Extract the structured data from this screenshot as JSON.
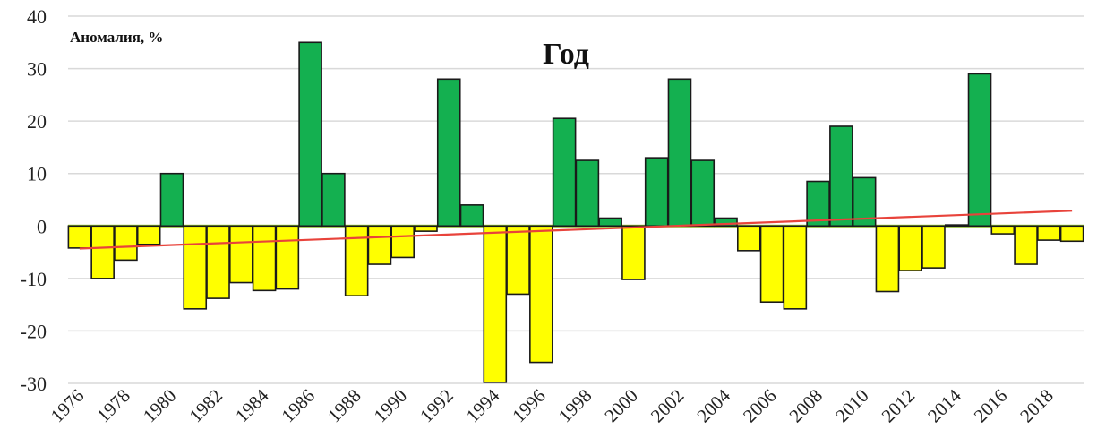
{
  "chart_data": {
    "type": "bar",
    "title": "Год",
    "ylabel": "Аномалия, %",
    "xlabel": "",
    "ylim": [
      -30,
      40
    ],
    "y_ticks": [
      40,
      30,
      20,
      10,
      0,
      -10,
      -20,
      -30
    ],
    "x_tick_labels": [
      "1976",
      "1978",
      "1980",
      "1982",
      "1984",
      "1986",
      "1988",
      "1990",
      "1992",
      "1994",
      "1996",
      "1998",
      "2000",
      "2002",
      "2004",
      "2006",
      "2008",
      "2010",
      "2012",
      "2014",
      "2016",
      "2018"
    ],
    "categories": [
      "1976",
      "1977",
      "1978",
      "1979",
      "1980",
      "1981",
      "1982",
      "1983",
      "1984",
      "1985",
      "1986",
      "1987",
      "1988",
      "1989",
      "1990",
      "1991",
      "1992",
      "1993",
      "1994",
      "1995",
      "1996",
      "1997",
      "1998",
      "1999",
      "2000",
      "2001",
      "2002",
      "2003",
      "2004",
      "2005",
      "2006",
      "2007",
      "2008",
      "2009",
      "2010",
      "2011",
      "2012",
      "2013",
      "2014",
      "2015",
      "2016",
      "2017",
      "2018",
      "2019"
    ],
    "values": [
      -4.2,
      -10,
      -6.5,
      -3.5,
      10,
      -15.8,
      -13.8,
      -10.8,
      -12.3,
      -12,
      35,
      10,
      -13.3,
      -7.3,
      -6,
      -1,
      28,
      4,
      -29.8,
      -13,
      -26,
      20.5,
      12.5,
      1.5,
      -10.2,
      13,
      28,
      12.5,
      1.5,
      -4.7,
      -14.5,
      -15.8,
      8.5,
      19,
      9.2,
      -12.5,
      -8.5,
      -8,
      0.2,
      29,
      -1.5,
      -7.3,
      -2.7,
      -2.9
    ],
    "colors": {
      "positive": "#14b050",
      "negative": "#ffff00",
      "trend": "#e8433b",
      "grid": "#d9d9d9",
      "outline": "#1a1a1a"
    },
    "trend": {
      "start": -4.3,
      "end": 2.9
    },
    "grid": true
  }
}
